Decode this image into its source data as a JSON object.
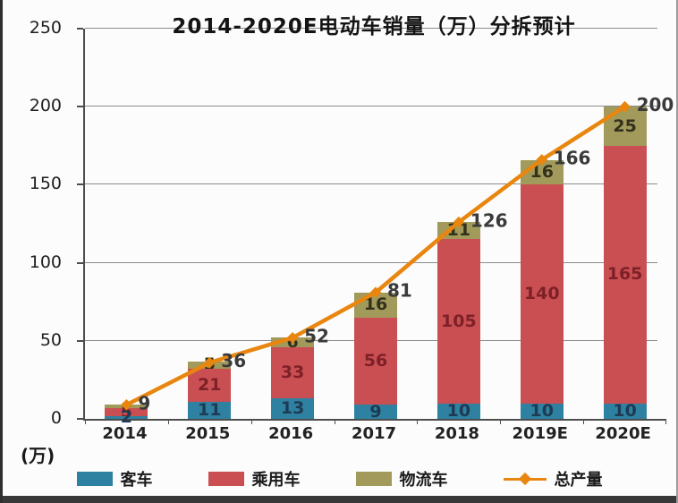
{
  "chart_data": {
    "type": "bar",
    "stacked": true,
    "title": "2014-2020E电动车销量（万）分拆预计",
    "y_unit_label": "(万)",
    "categories": [
      "2014",
      "2015",
      "2016",
      "2017",
      "2018",
      "2019E",
      "2020E"
    ],
    "series": [
      {
        "name": "客车",
        "color": "#2e81a0",
        "label_color": "#1e3a54",
        "values": [
          2,
          11,
          13,
          9,
          10,
          10,
          10
        ],
        "labels": [
          "2",
          "11",
          "13",
          "9",
          "10",
          "10",
          "10"
        ]
      },
      {
        "name": "乘用车",
        "color": "#ca4f53",
        "label_color": "#7d2027",
        "values": [
          5,
          21,
          33,
          56,
          105,
          140,
          165
        ],
        "labels": [
          "5",
          "21",
          "33",
          "56",
          "105",
          "140",
          "165"
        ]
      },
      {
        "name": "物流车",
        "color": "#a19a5b",
        "label_color": "#33301c",
        "values": [
          2,
          5,
          6,
          16,
          11,
          16,
          25
        ],
        "labels": [
          "",
          "5",
          "6",
          "16",
          "11",
          "16",
          "25"
        ]
      }
    ],
    "line": {
      "name": "总产量",
      "color": "#e8860f",
      "values": [
        9,
        36,
        52,
        81,
        126,
        166,
        200
      ],
      "labels": [
        "9",
        "36",
        "52",
        "81",
        "126",
        "166",
        "200"
      ]
    },
    "ylim": [
      0,
      250
    ],
    "yticks": [
      0,
      50,
      100,
      150,
      200,
      250
    ],
    "grid": "horizontal",
    "legend_position": "bottom"
  },
  "legend": {
    "items": [
      {
        "label": "客车",
        "type": "swatch",
        "color": "#2e81a0"
      },
      {
        "label": "乘用车",
        "type": "swatch",
        "color": "#ca4f53"
      },
      {
        "label": "物流车",
        "type": "swatch",
        "color": "#a19a5b"
      },
      {
        "label": "总产量",
        "type": "line",
        "color": "#e8860f"
      }
    ]
  }
}
